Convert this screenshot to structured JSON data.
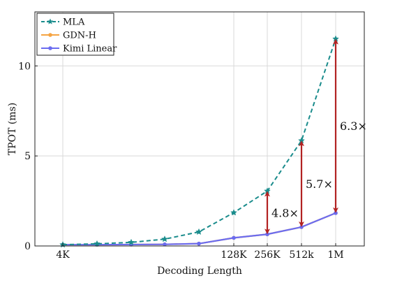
{
  "chart_data": {
    "type": "line",
    "xlabel": "Decoding Length",
    "ylabel": "TPOT (ms)",
    "x_ticks": [
      "4K",
      "128K",
      "256K",
      "512k",
      "1M"
    ],
    "y_ticks": [
      "0",
      "5",
      "10"
    ],
    "ylim": [
      0,
      13.0
    ],
    "grid": true,
    "legend_position": "top-left",
    "series": [
      {
        "name": "MLA",
        "color": "#1a8c8c",
        "style": "dashed",
        "marker": "star",
        "values": [
          0.07,
          0.12,
          0.2,
          0.38,
          0.78,
          1.85,
          3.05,
          5.85,
          11.5
        ]
      },
      {
        "name": "GDN-H",
        "color": "#f5a442",
        "style": "solid",
        "marker": "circle",
        "values": [
          0.07,
          0.07,
          0.08,
          0.09,
          0.13,
          0.45,
          0.65,
          1.05,
          1.83
        ]
      },
      {
        "name": "Kimi Linear",
        "color": "#6b6cf0",
        "style": "solid",
        "marker": "circle",
        "values": [
          0.07,
          0.07,
          0.08,
          0.09,
          0.13,
          0.45,
          0.65,
          1.05,
          1.83
        ]
      }
    ],
    "annotations": [
      {
        "label": "4.8×",
        "point_index": 6
      },
      {
        "label": "5.7×",
        "point_index": 7
      },
      {
        "label": "6.3×",
        "point_index": 8
      }
    ],
    "annotation_color": "#b22222"
  }
}
